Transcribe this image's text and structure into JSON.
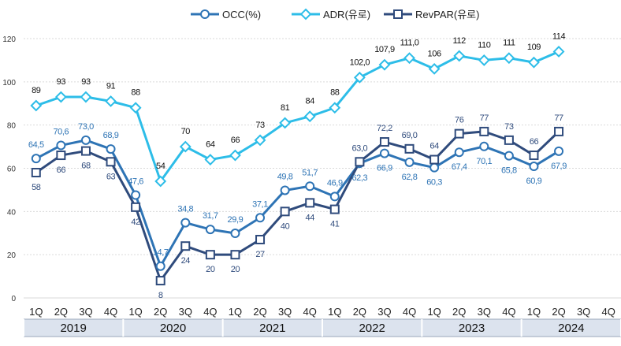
{
  "chart_data": {
    "type": "line",
    "categories": [
      "1Q",
      "2Q",
      "3Q",
      "4Q",
      "1Q",
      "2Q",
      "3Q",
      "4Q",
      "1Q",
      "2Q",
      "3Q",
      "4Q",
      "1Q",
      "2Q",
      "3Q",
      "4Q",
      "1Q",
      "2Q",
      "3Q",
      "4Q",
      "1Q",
      "2Q",
      "3Q",
      "4Q"
    ],
    "years": [
      "2019",
      "2020",
      "2021",
      "2022",
      "2023",
      "2024"
    ],
    "ylim": [
      0,
      120
    ],
    "yticks": [
      "0",
      "20",
      "40",
      "60",
      "80",
      "100",
      "120"
    ],
    "grid": true,
    "legend_position": "top-center",
    "series": [
      {
        "name": "OCC(%)",
        "color": "#2e74b5",
        "marker": "circle",
        "values": [
          64.5,
          70.6,
          73.0,
          68.9,
          47.6,
          14.7,
          34.8,
          31.7,
          29.9,
          37.1,
          49.8,
          51.7,
          46.9,
          62.3,
          66.9,
          62.8,
          60.3,
          67.4,
          70.1,
          65.8,
          60.9,
          67.9,
          null,
          null
        ],
        "labels": [
          "64,5",
          "70,6",
          "73,0",
          "68,9",
          "47,6",
          "14,7",
          "34,8",
          "31,7",
          "29,9",
          "37,1",
          "49,8",
          "51,7",
          "46,9",
          "62,3",
          "66,9",
          "62,8",
          "60,3",
          "67,4",
          "70,1",
          "65,8",
          "60,9",
          "67,9",
          "",
          ""
        ]
      },
      {
        "name": "ADR(유로)",
        "color": "#2dbde8",
        "marker": "diamond",
        "values": [
          89,
          93,
          93,
          91,
          88,
          54,
          70,
          64,
          66,
          73,
          81,
          84,
          88,
          102.0,
          107.9,
          111.0,
          106,
          112,
          110,
          111,
          109,
          114,
          null,
          null
        ],
        "labels": [
          "89",
          "93",
          "93",
          "91",
          "88",
          "54",
          "70",
          "64",
          "66",
          "73",
          "81",
          "84",
          "88",
          "102,0",
          "107,9",
          "111,0",
          "106",
          "112",
          "110",
          "111",
          "109",
          "114",
          "",
          ""
        ]
      },
      {
        "name": "RevPAR(유로)",
        "color": "#2f4b7c",
        "marker": "square",
        "values": [
          58,
          66,
          68,
          63,
          42,
          8,
          24,
          20,
          20,
          27,
          40,
          44,
          41,
          63.0,
          72.2,
          69.0,
          64,
          76,
          77,
          73,
          66,
          77,
          null,
          null
        ],
        "labels": [
          "58",
          "66",
          "68",
          "63",
          "42",
          "8",
          "24",
          "20",
          "20",
          "27",
          "40",
          "44",
          "41",
          "63,0",
          "72,2",
          "69,0",
          "64",
          "76",
          "77",
          "73",
          "66",
          "77",
          "",
          ""
        ]
      }
    ]
  }
}
